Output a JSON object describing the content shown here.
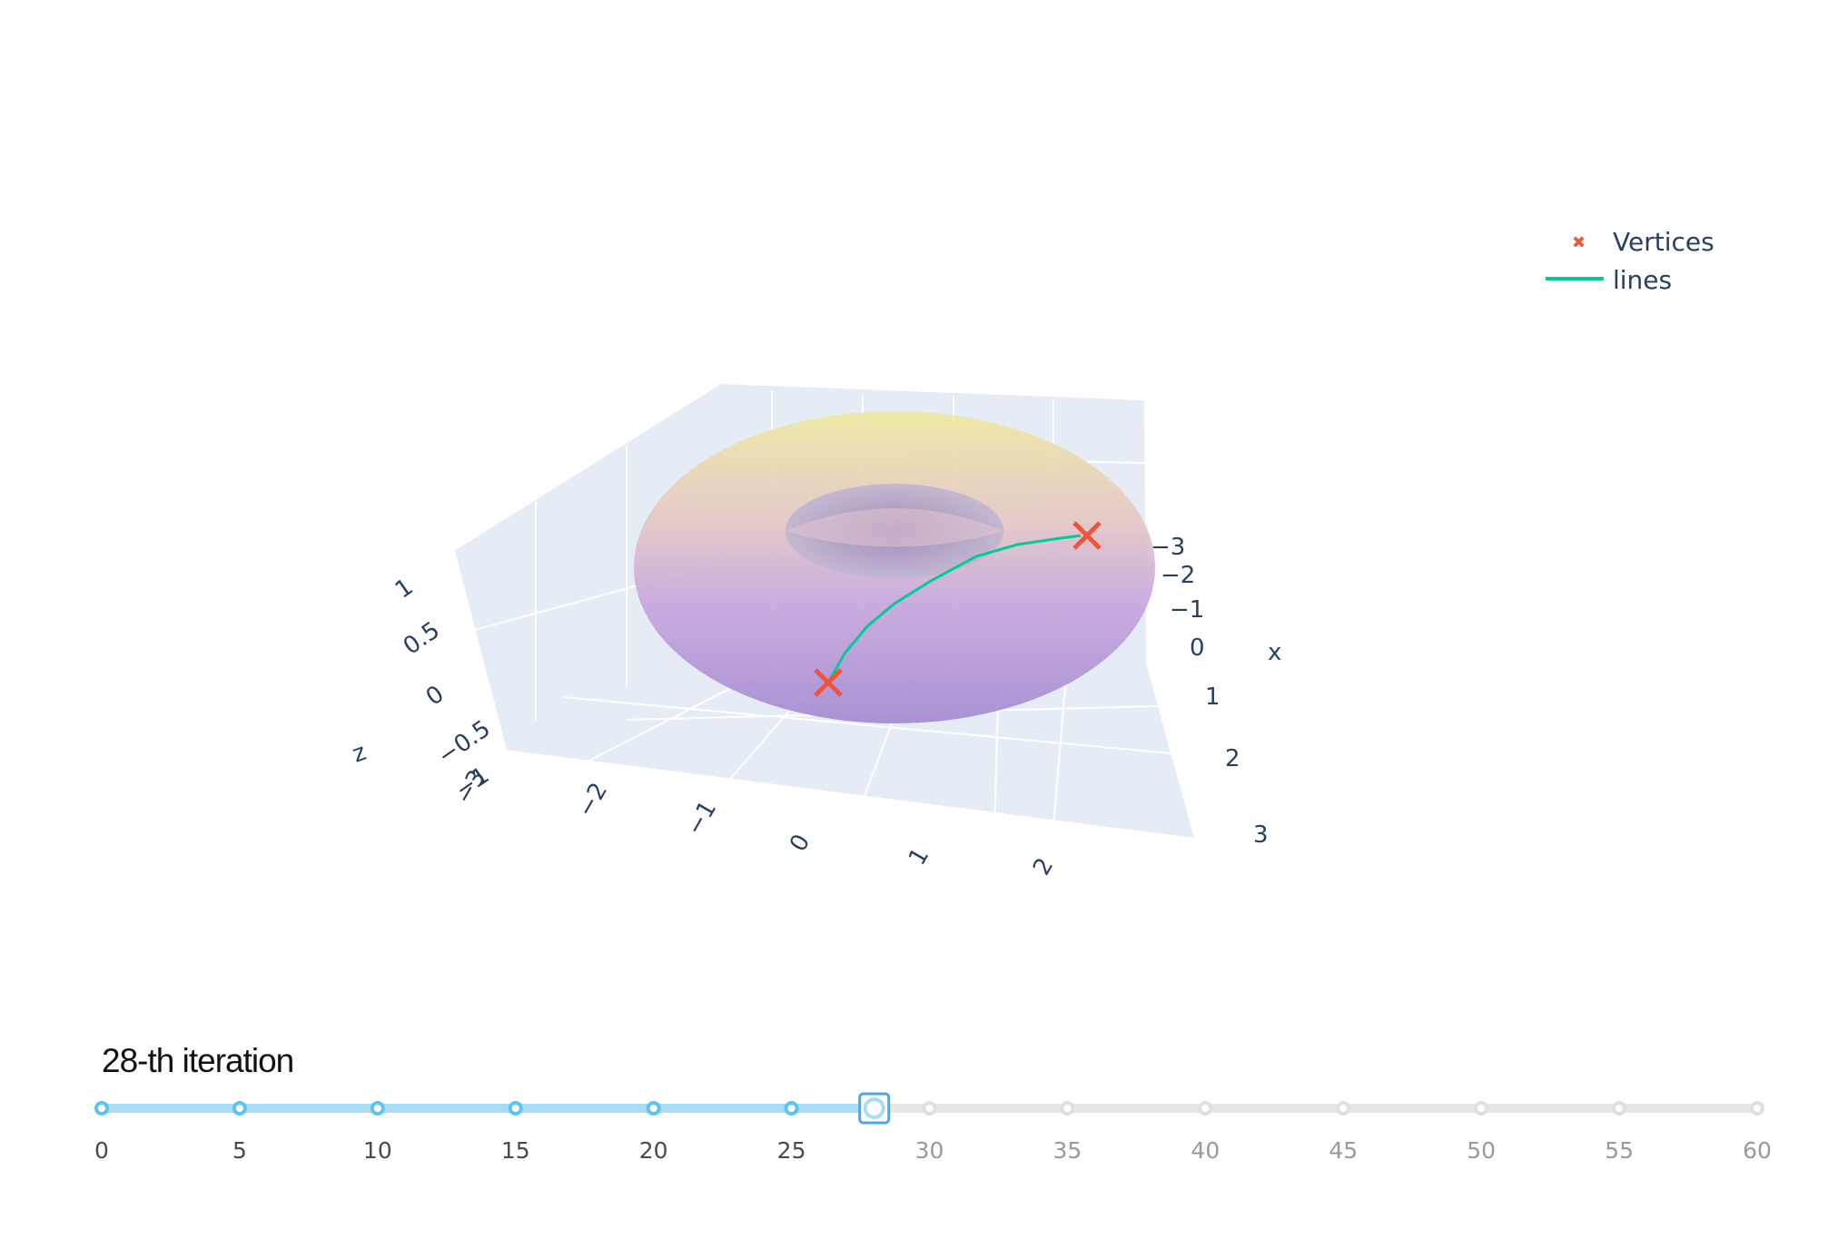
{
  "chart_data": {
    "type": "scatter",
    "surface": "torus",
    "scene": {
      "x_ticks": [
        "−3",
        "−2",
        "−1",
        "0",
        "1",
        "2",
        "3"
      ],
      "y_ticks": [
        "−3",
        "−2",
        "−1",
        "0",
        "1",
        "2"
      ],
      "z_ticks": [
        "1",
        "0.5",
        "0",
        "−0.5",
        "−1"
      ],
      "xlabel": "x",
      "zlabel": "z"
    },
    "legend": {
      "placement": "top-right",
      "items": [
        {
          "name": "Vertices",
          "symbol": "x",
          "color": "#ef553b"
        },
        {
          "name": "lines",
          "symbol": "line",
          "color": "#00cc96"
        }
      ]
    },
    "slider": {
      "current_label": "28-th iteration",
      "active_value": 28,
      "min": 0,
      "max": 60,
      "ticks": [
        "0",
        "5",
        "10",
        "15",
        "20",
        "25",
        "30",
        "35",
        "40",
        "45",
        "50",
        "55",
        "60"
      ]
    }
  },
  "colors": {
    "grid": "#ffffff",
    "pane": "#e5ecf6",
    "axis_text": "#2a3f5f",
    "vertices": "#ef553b",
    "line": "#00cc96",
    "slider_active": "#a8ddf3",
    "slider_inactive": "#e6e6e6",
    "slider_handle": "#4aa8ea"
  }
}
